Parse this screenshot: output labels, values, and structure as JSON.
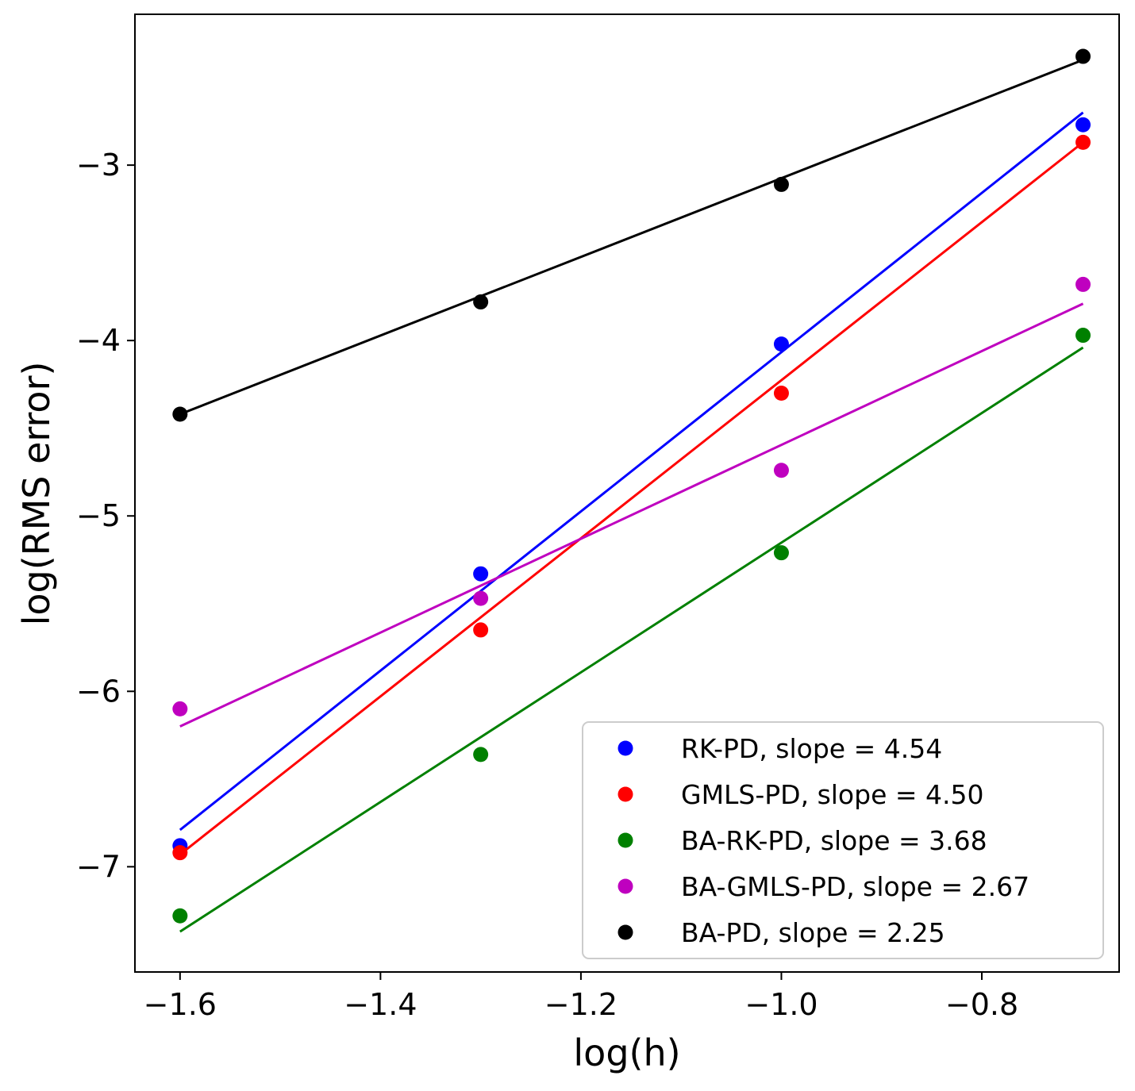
{
  "chart_data": {
    "type": "scatter",
    "title": "",
    "xlabel": "log(h)",
    "ylabel": "log(RMS error)",
    "xlim": [
      -1.645,
      -0.663
    ],
    "ylim": [
      -7.6,
      -2.14
    ],
    "xticks": [
      -1.6,
      -1.4,
      -1.2,
      -1.0,
      -0.8
    ],
    "xtick_labels": [
      "−1.6",
      "−1.4",
      "−1.2",
      "−1.0",
      "−0.8"
    ],
    "yticks": [
      -7,
      -6,
      -5,
      -4,
      -3
    ],
    "ytick_labels": [
      "−7",
      "−6",
      "−5",
      "−4",
      "−3"
    ],
    "legend_position": "lower-right",
    "series": [
      {
        "name": "RK-PD, slope = 4.54",
        "color": "#0000ff",
        "x": [
          -1.6,
          -1.3,
          -1.0,
          -0.699
        ],
        "y": [
          -6.88,
          -5.33,
          -4.02,
          -2.77
        ],
        "fit": {
          "x": [
            -1.6,
            -0.699
          ],
          "y": [
            -6.79,
            -2.7
          ]
        }
      },
      {
        "name": "GMLS-PD, slope = 4.50",
        "color": "#ff0000",
        "x": [
          -1.6,
          -1.3,
          -1.0,
          -0.699
        ],
        "y": [
          -6.92,
          -5.65,
          -4.3,
          -2.87
        ],
        "fit": {
          "x": [
            -1.6,
            -0.699
          ],
          "y": [
            -6.93,
            -2.87
          ]
        }
      },
      {
        "name": "BA-RK-PD, slope = 3.68",
        "color": "#008000",
        "x": [
          -1.6,
          -1.3,
          -1.0,
          -0.699
        ],
        "y": [
          -7.28,
          -6.36,
          -5.21,
          -3.97
        ],
        "fit": {
          "x": [
            -1.6,
            -0.699
          ],
          "y": [
            -7.37,
            -4.04
          ]
        }
      },
      {
        "name": "BA-GMLS-PD, slope = 2.67",
        "color": "#bf00bf",
        "x": [
          -1.6,
          -1.3,
          -1.0,
          -0.699
        ],
        "y": [
          -6.1,
          -5.47,
          -4.74,
          -3.68
        ],
        "fit": {
          "x": [
            -1.6,
            -0.699
          ],
          "y": [
            -6.2,
            -3.79
          ]
        }
      },
      {
        "name": "BA-PD, slope = 2.25",
        "color": "#000000",
        "x": [
          -1.6,
          -1.3,
          -1.0,
          -0.699
        ],
        "y": [
          -4.42,
          -3.78,
          -3.11,
          -2.38
        ],
        "fit": {
          "x": [
            -1.6,
            -0.699
          ],
          "y": [
            -4.42,
            -2.4
          ]
        }
      }
    ]
  }
}
